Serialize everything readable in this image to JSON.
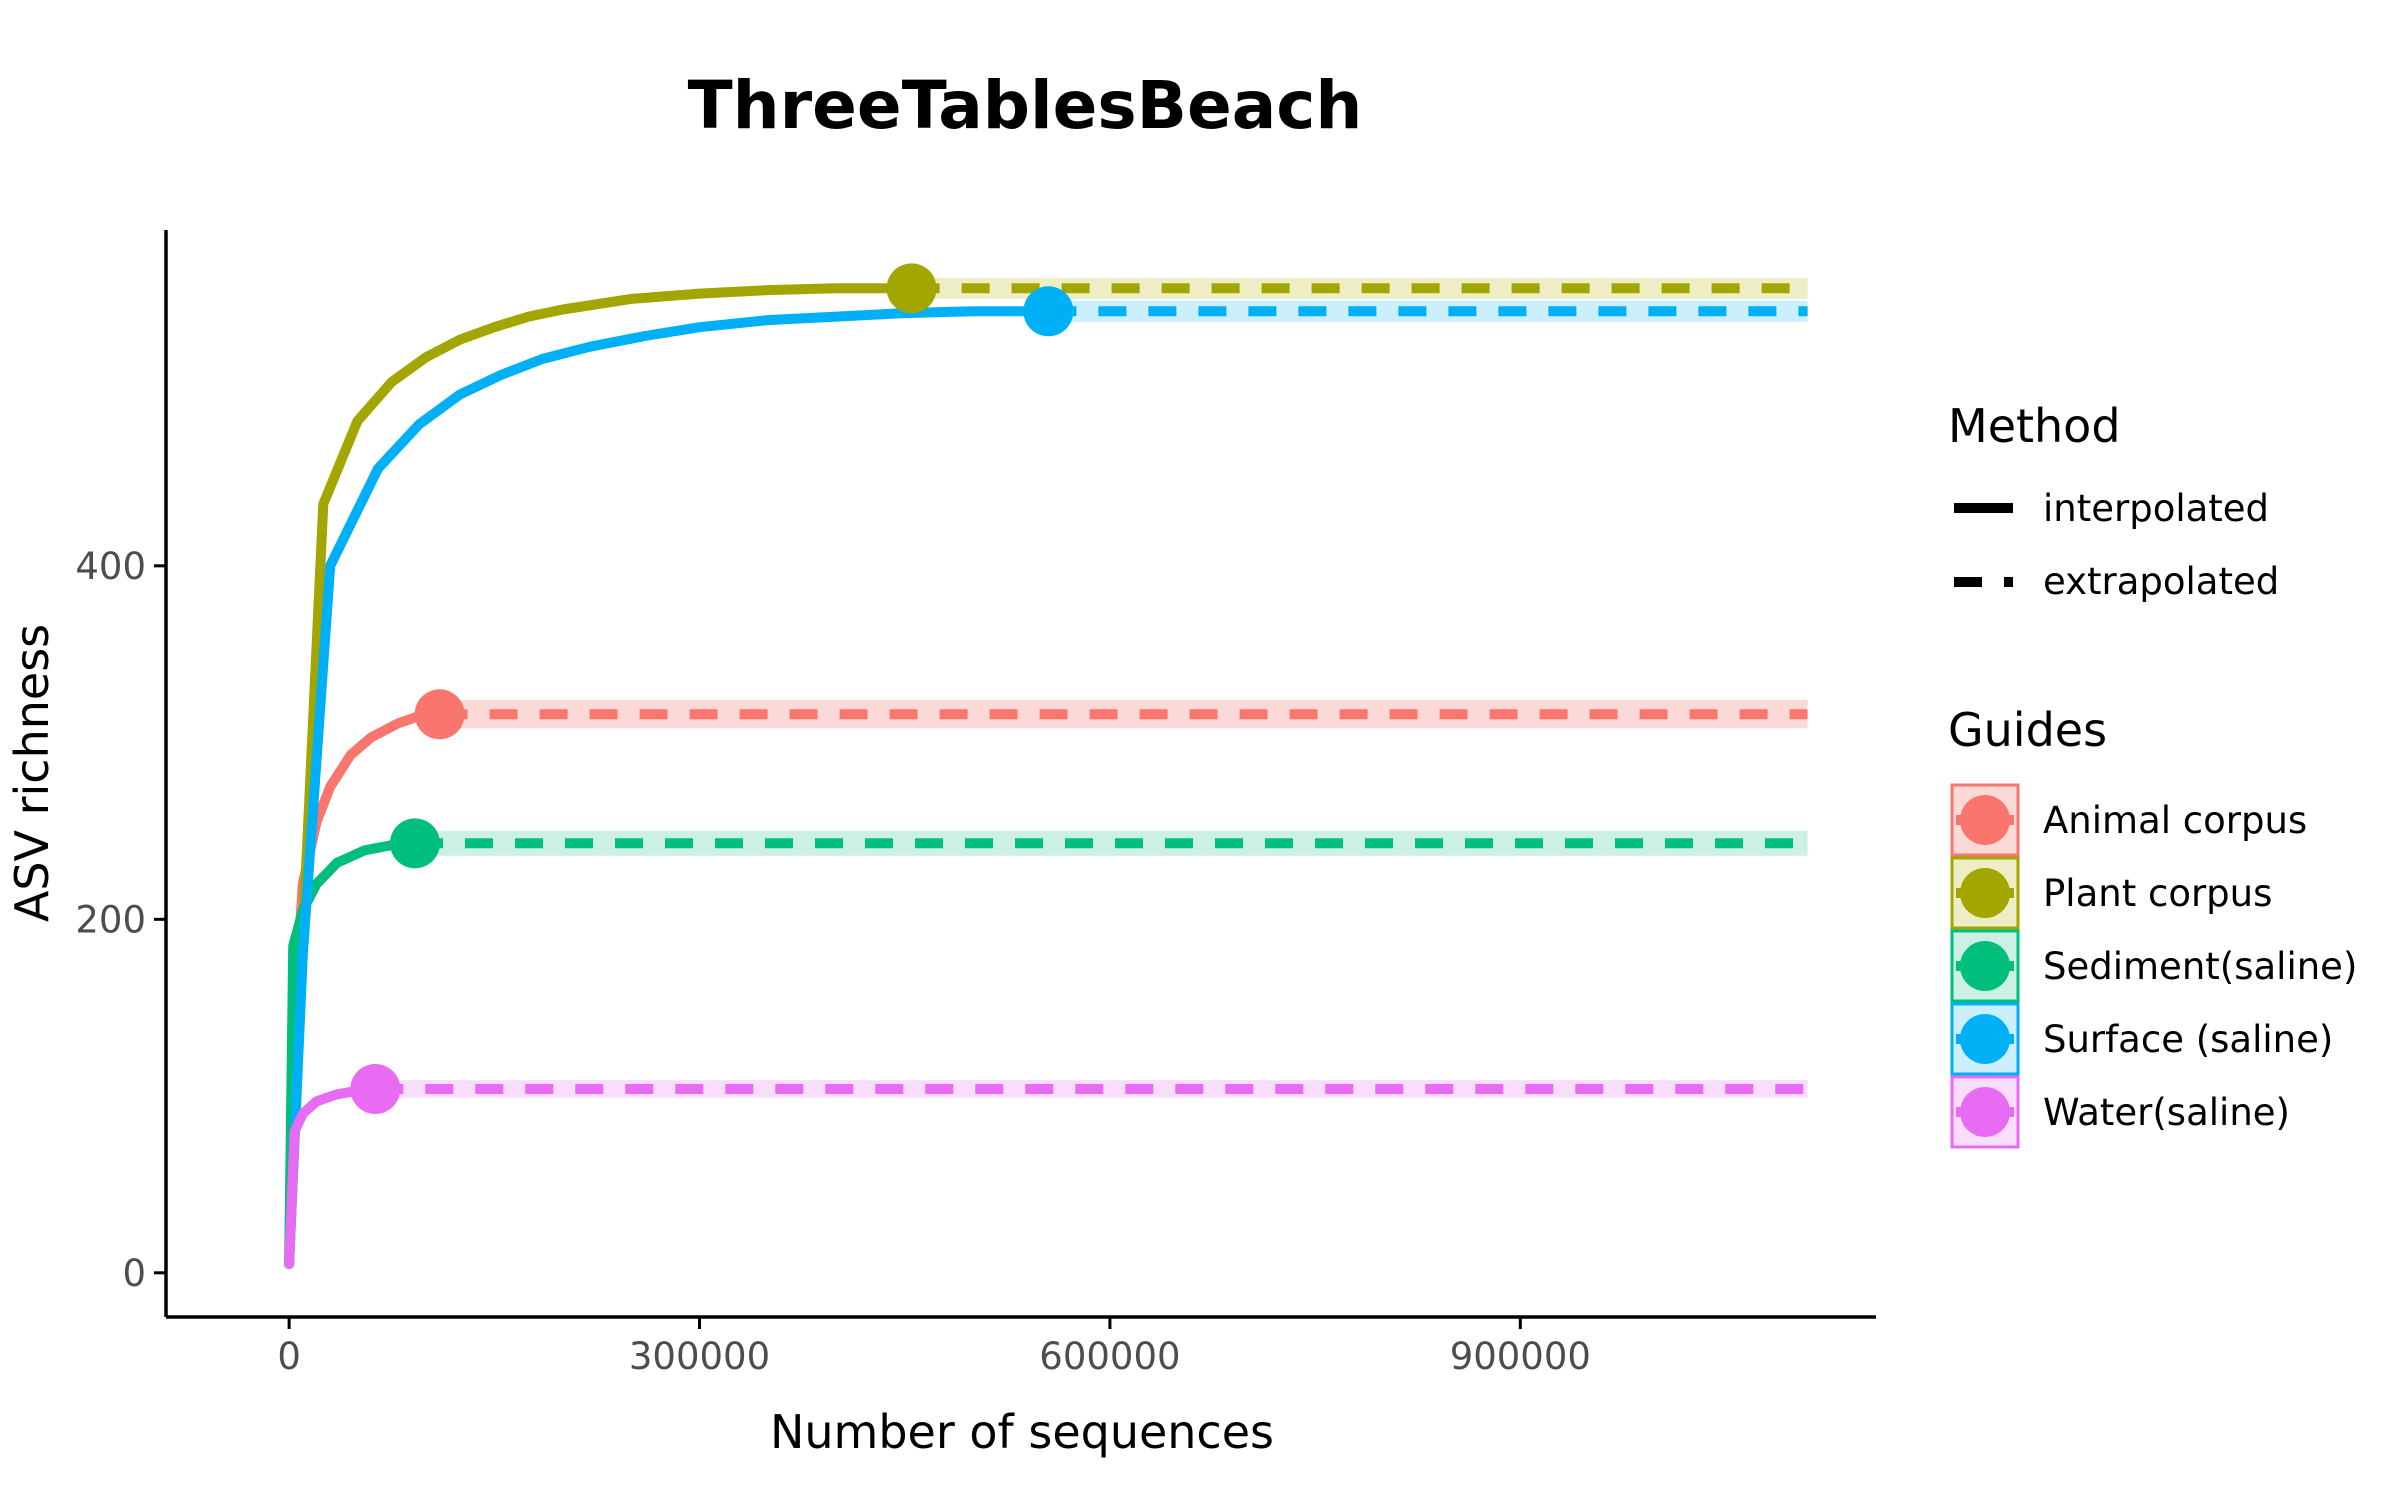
{
  "chart_data": {
    "type": "line",
    "title": "ThreeTablesBeach",
    "xlabel": "Number of sequences",
    "ylabel": "ASV richness",
    "xlim": [
      -90000,
      1160000
    ],
    "ylim": [
      -25,
      590
    ],
    "xticks": [
      0,
      300000,
      600000,
      900000
    ],
    "yticks": [
      0,
      200,
      400
    ],
    "grid": false,
    "legend_position": "right",
    "x_extrapolate_to": 1110000,
    "legend": {
      "method_title": "Method",
      "method_items": [
        {
          "label": "interpolated",
          "style": "solid"
        },
        {
          "label": "extrapolated",
          "style": "dashed"
        }
      ],
      "guides_title": "Guides"
    },
    "series": [
      {
        "name": "Animal corpus",
        "color": "#F8766D",
        "fill": "#FBD9D7",
        "observed": {
          "x": 110000,
          "y": 316
        },
        "ci": 8,
        "interpolated": [
          [
            0,
            5
          ],
          [
            5000,
            160
          ],
          [
            10000,
            220
          ],
          [
            20000,
            255
          ],
          [
            30000,
            275
          ],
          [
            45000,
            293
          ],
          [
            60000,
            303
          ],
          [
            80000,
            311
          ],
          [
            95000,
            315
          ],
          [
            110000,
            316
          ]
        ],
        "extrapolated": [
          [
            110000,
            316
          ],
          [
            1110000,
            316
          ]
        ]
      },
      {
        "name": "Plant corpus",
        "color": "#A3A500",
        "fill": "#EDEDC6",
        "observed": {
          "x": 455000,
          "y": 557
        },
        "ci": 6,
        "interpolated": [
          [
            0,
            5
          ],
          [
            10000,
            190
          ],
          [
            25000,
            435
          ],
          [
            50000,
            482
          ],
          [
            75000,
            504
          ],
          [
            100000,
            518
          ],
          [
            125000,
            528
          ],
          [
            150000,
            535
          ],
          [
            175000,
            541
          ],
          [
            200000,
            545
          ],
          [
            250000,
            551
          ],
          [
            300000,
            554
          ],
          [
            350000,
            556
          ],
          [
            400000,
            557
          ],
          [
            455000,
            557
          ]
        ],
        "extrapolated": [
          [
            455000,
            557
          ],
          [
            1110000,
            557
          ]
        ]
      },
      {
        "name": "Sediment(saline)",
        "color": "#00BF7D",
        "fill": "#CCF0E3",
        "observed": {
          "x": 92000,
          "y": 243
        },
        "ci": 7,
        "interpolated": [
          [
            0,
            5
          ],
          [
            3000,
            185
          ],
          [
            10000,
            205
          ],
          [
            20000,
            220
          ],
          [
            35000,
            232
          ],
          [
            55000,
            239
          ],
          [
            75000,
            242
          ],
          [
            92000,
            243
          ]
        ],
        "extrapolated": [
          [
            92000,
            243
          ],
          [
            1110000,
            243
          ]
        ]
      },
      {
        "name": "Surface (saline)",
        "color": "#00B0F6",
        "fill": "#CCEFFD",
        "observed": {
          "x": 555000,
          "y": 544
        },
        "ci": 6,
        "interpolated": [
          [
            0,
            5
          ],
          [
            10000,
            180
          ],
          [
            30000,
            400
          ],
          [
            65000,
            455
          ],
          [
            95000,
            480
          ],
          [
            125000,
            497
          ],
          [
            155000,
            508
          ],
          [
            185000,
            517
          ],
          [
            220000,
            524
          ],
          [
            260000,
            530
          ],
          [
            300000,
            535
          ],
          [
            350000,
            539
          ],
          [
            400000,
            541
          ],
          [
            450000,
            543
          ],
          [
            500000,
            544
          ],
          [
            555000,
            544
          ]
        ],
        "extrapolated": [
          [
            555000,
            544
          ],
          [
            1110000,
            544
          ]
        ]
      },
      {
        "name": "Water(saline)",
        "color": "#E76BF3",
        "fill": "#F9DDFC",
        "observed": {
          "x": 63000,
          "y": 104
        },
        "ci": 5,
        "interpolated": [
          [
            0,
            5
          ],
          [
            4000,
            80
          ],
          [
            10000,
            90
          ],
          [
            20000,
            97
          ],
          [
            35000,
            101
          ],
          [
            50000,
            103
          ],
          [
            63000,
            104
          ]
        ],
        "extrapolated": [
          [
            63000,
            104
          ],
          [
            1110000,
            104
          ]
        ]
      }
    ]
  }
}
